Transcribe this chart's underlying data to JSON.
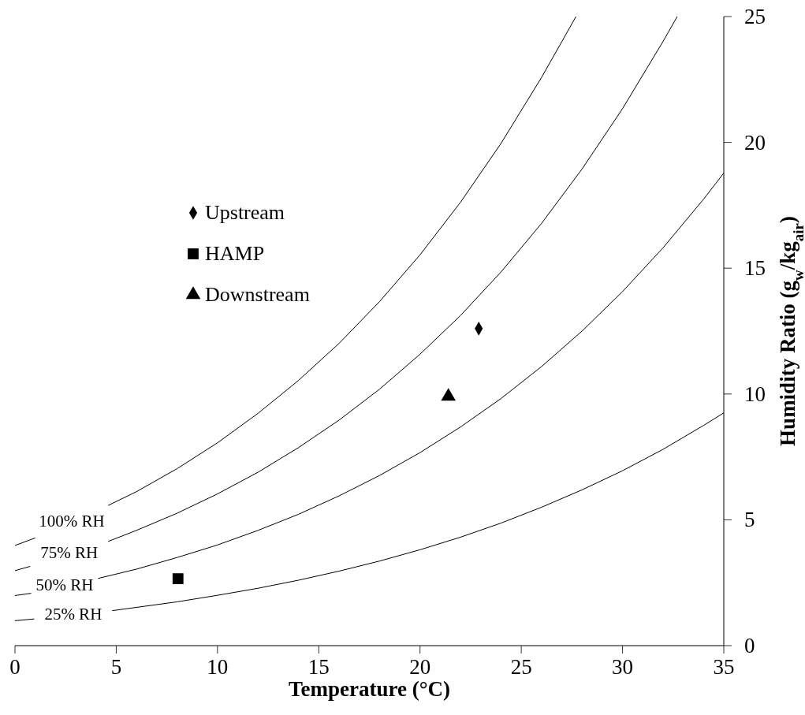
{
  "chart_data": {
    "type": "line",
    "xlabel": "Temperature (°C)",
    "ylabel": "Humidity Ratio (g$_{w}$/kg$_{air}$)",
    "xlim": [
      0,
      35
    ],
    "xticks": [
      0,
      5,
      10,
      15,
      20,
      25,
      30,
      35
    ],
    "ylim": [
      0,
      25
    ],
    "yticks": [
      0,
      5,
      10,
      15,
      20,
      25
    ],
    "grid": false,
    "legend": "top left",
    "series": [
      {
        "name": "100% RH",
        "color": "#000000",
        "line_style": "solid",
        "marker": "none",
        "x": [
          0,
          1,
          2.8,
          4.6,
          6,
          8,
          10,
          12,
          14,
          16,
          18,
          20,
          22,
          24,
          26,
          27,
          27.7
        ],
        "values": [
          3.98,
          4.28,
          null,
          5.57,
          6.12,
          7.03,
          8.06,
          9.23,
          10.54,
          12.01,
          13.67,
          15.53,
          17.62,
          19.96,
          22.58,
          24.0,
          25.0
        ]
      },
      {
        "name": "75% RH",
        "color": "#000000",
        "line_style": "solid",
        "marker": "none",
        "x": [
          0,
          0.75,
          2.7,
          4.6,
          6,
          8,
          10,
          12,
          14,
          16,
          18,
          20,
          22,
          24,
          26,
          28,
          30,
          32,
          32.7
        ],
        "values": [
          2.98,
          3.15,
          null,
          4.14,
          4.58,
          5.26,
          6.03,
          6.89,
          7.87,
          8.96,
          10.19,
          11.58,
          13.12,
          14.85,
          16.78,
          18.94,
          21.34,
          24.01,
          25.0
        ]
      },
      {
        "name": "50% RH",
        "color": "#000000",
        "line_style": "solid",
        "marker": "none",
        "x": [
          0,
          0.8,
          2.5,
          4.1,
          6,
          8,
          10,
          12,
          14,
          16,
          18,
          20,
          22,
          24,
          26,
          28,
          30,
          32,
          34,
          35
        ],
        "values": [
          1.99,
          2.08,
          null,
          2.67,
          3.04,
          3.5,
          4.0,
          4.58,
          5.22,
          5.95,
          6.76,
          7.67,
          8.69,
          9.82,
          11.09,
          12.5,
          14.07,
          15.81,
          17.74,
          18.78
        ]
      },
      {
        "name": "25% RH",
        "color": "#000000",
        "line_style": "solid",
        "marker": "none",
        "x": [
          0,
          0.95,
          2.9,
          4.8,
          6,
          8,
          10,
          12,
          14,
          16,
          18,
          20,
          22,
          24,
          26,
          28,
          30,
          32,
          34,
          35
        ],
        "values": [
          0.99,
          1.06,
          null,
          1.39,
          1.52,
          1.74,
          2.0,
          2.28,
          2.6,
          2.96,
          3.36,
          3.81,
          4.31,
          4.87,
          5.5,
          6.19,
          6.95,
          7.8,
          8.75,
          9.25
        ]
      },
      {
        "name": "Upstream",
        "type": "scatter",
        "color": "#000000",
        "marker": "diamond",
        "x": [
          22.9
        ],
        "values": [
          12.6
        ]
      },
      {
        "name": "HAMP",
        "type": "scatter",
        "color": "#000000",
        "marker": "square",
        "x": [
          8.05
        ],
        "values": [
          2.66
        ]
      },
      {
        "name": "Downstream",
        "type": "scatter",
        "color": "#000000",
        "marker": "triangle",
        "x": [
          21.4
        ],
        "values": [
          9.9
        ]
      }
    ]
  }
}
